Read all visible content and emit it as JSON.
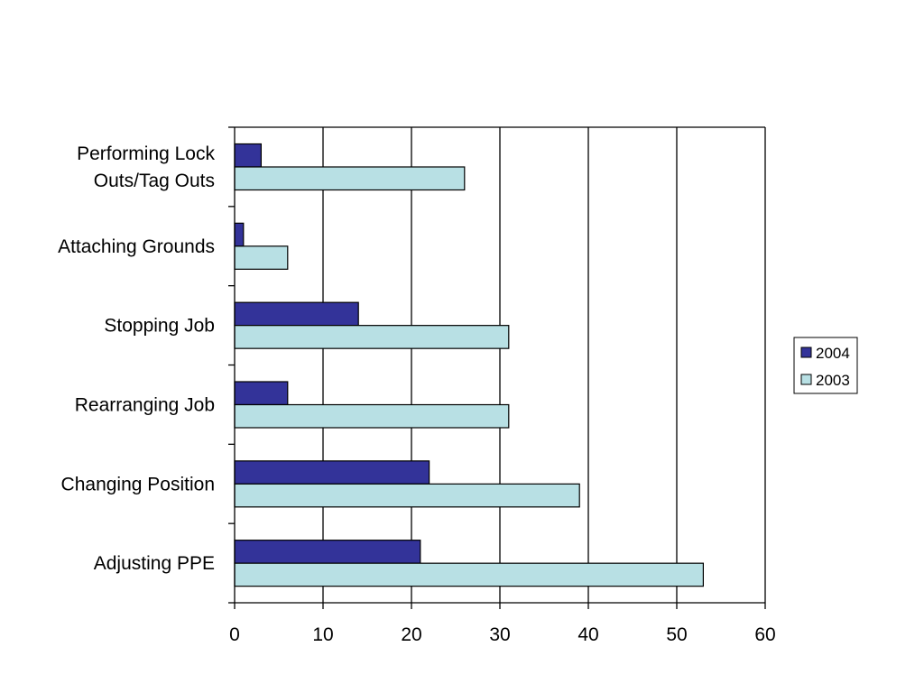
{
  "chart_data": {
    "type": "bar",
    "orientation": "horizontal",
    "categories": [
      [
        "Performing Lock",
        "Outs/Tag Outs"
      ],
      [
        "Attaching Grounds"
      ],
      [
        "Stopping Job"
      ],
      [
        "Rearranging Job"
      ],
      [
        "Changing Position"
      ],
      [
        "Adjusting PPE"
      ]
    ],
    "series": [
      {
        "name": "2004",
        "values": [
          3,
          1,
          14,
          6,
          22,
          21
        ],
        "color": "#333399"
      },
      {
        "name": "2003",
        "values": [
          26,
          6,
          31,
          31,
          39,
          53
        ],
        "color": "#b8e0e4"
      }
    ],
    "x_ticks": [
      "0",
      "10",
      "20",
      "30",
      "40",
      "50",
      "60"
    ],
    "xlim": [
      0,
      60
    ],
    "grid": "vertical",
    "legend_position": "right"
  }
}
